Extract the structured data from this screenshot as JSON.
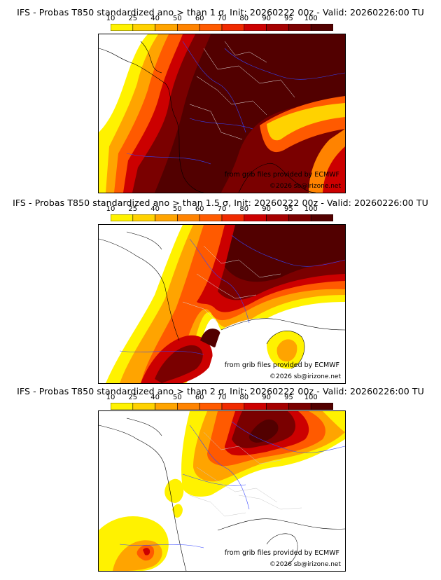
{
  "legend": {
    "ticks": [
      "10",
      "25",
      "40",
      "50",
      "60",
      "70",
      "80",
      "90",
      "95",
      "100"
    ],
    "colors": [
      "#fff200",
      "#ffd200",
      "#ffa400",
      "#ff8300",
      "#ff5a00",
      "#f02a00",
      "#cc0000",
      "#a50000",
      "#7a0000",
      "#520000"
    ]
  },
  "panels": [
    {
      "title": "IFS - Probas T850  standardized ano > than 1 σ, Init: 20260222 00z - Valid: 20260226:00 TU",
      "credit": "from grib files provided by ECMWF",
      "copyright": "©2026 sb@irizone.net"
    },
    {
      "title": "IFS - Probas T850  standardized ano > than 1.5 σ, Init: 20260222 00z - Valid: 20260226:00 TU",
      "credit": "from grib files provided by ECMWF",
      "copyright": "©2026 sb@irizone.net"
    },
    {
      "title": "IFS - Probas T850  standardized ano > than 2 σ, Init: 20260222 00z - Valid: 20260226:00 TU",
      "credit": "from grib files provided by ECMWF",
      "copyright": "©2026 sb@irizone.net"
    }
  ]
}
